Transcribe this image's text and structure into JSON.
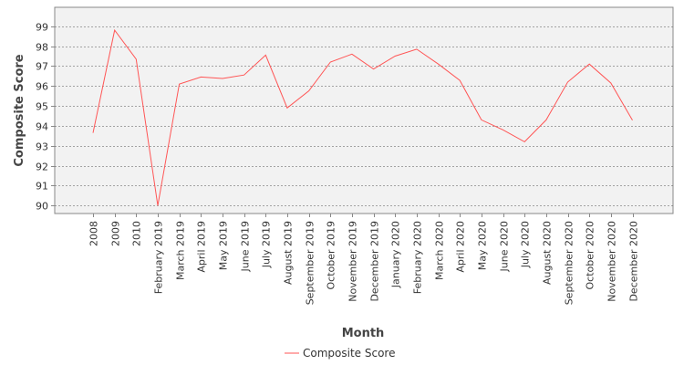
{
  "chart_data": {
    "type": "line",
    "xlabel": "Month",
    "ylabel": "Composite Score",
    "categories": [
      "2008",
      "2009",
      "2010",
      "February 2019",
      "March 2019",
      "April 2019",
      "May 2019",
      "June 2019",
      "July 2019",
      "August 2019",
      "September 2019",
      "October 2019",
      "November 2019",
      "December 2019",
      "January 2020",
      "February 2020",
      "March 2020",
      "April 2020",
      "May 2020",
      "June 2020",
      "July 2020",
      "August 2020",
      "September 2020",
      "October 2020",
      "November 2020",
      "December 2020"
    ],
    "series": [
      {
        "name": "Composite Score",
        "color": "#ff5555",
        "values": [
          93.65,
          98.8,
          97.35,
          90.0,
          96.1,
          96.45,
          96.38,
          96.55,
          97.55,
          94.9,
          95.75,
          97.2,
          97.6,
          96.85,
          97.5,
          97.85,
          97.1,
          96.28,
          94.3,
          93.8,
          93.2,
          94.3,
          96.2,
          97.1,
          96.15,
          94.28
        ]
      }
    ],
    "ylim": [
      89.6,
      99.95
    ],
    "yticks": [
      90,
      91,
      92,
      93,
      94,
      95,
      96,
      97,
      98,
      99
    ],
    "grid": true,
    "legend_position": "bottom-center",
    "background": "#f2f2f2"
  }
}
